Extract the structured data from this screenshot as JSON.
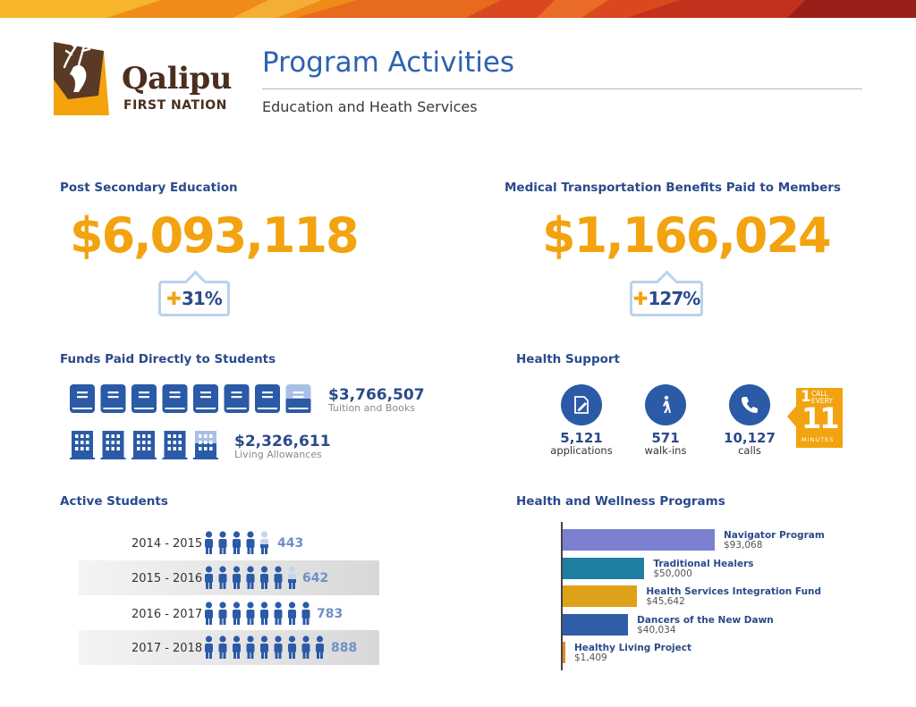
{
  "header": {
    "logo_name": "Qalipu",
    "logo_sub": "FIRST NATION",
    "title": "Program Activities",
    "subtitle": "Education and Heath Services"
  },
  "post_secondary": {
    "heading": "Post Secondary Education",
    "amount": "$6,093,118",
    "pct": "31%"
  },
  "medical": {
    "heading": "Medical Transportation Benefits Paid to Members",
    "amount": "$1,166,024",
    "pct": "127%"
  },
  "funds": {
    "heading": "Funds Paid Directly to Students",
    "tuition_amount": "$3,766,507",
    "tuition_label": "Tuition and Books",
    "tuition_icons": 7.5,
    "living_amount": "$2,326,611",
    "living_label": "Living Allowances",
    "living_icons": 4.5
  },
  "health_support": {
    "heading": "Health Support",
    "stats": [
      {
        "value": "5,121",
        "label": "applications",
        "icon": "document-pen-icon"
      },
      {
        "value": "571",
        "label": "walk-ins",
        "icon": "walking-person-icon"
      },
      {
        "value": "10,127",
        "label": "calls",
        "icon": "phone-icon"
      }
    ],
    "call_badge": {
      "top": "CALL",
      "every": "EVERY",
      "number": "11",
      "unit": "MINUTES",
      "lead": "1"
    }
  },
  "active_students": {
    "heading": "Active Students",
    "rows": [
      {
        "year": "2014 - 2015",
        "count": "443",
        "icons": 4.5
      },
      {
        "year": "2015 - 2016",
        "count": "642",
        "icons": 6.5
      },
      {
        "year": "2016 - 2017",
        "count": "783",
        "icons": 8
      },
      {
        "year": "2017 - 2018",
        "count": "888",
        "icons": 9
      }
    ]
  },
  "wellness": {
    "heading": "Health and Wellness Programs",
    "chart_data": {
      "type": "bar",
      "orientation": "horizontal",
      "categories": [
        "Navigator Program",
        "Traditional Healers",
        "Health Services Integration Fund",
        "Dancers of the New Dawn",
        "Healthy Living Project"
      ],
      "values": [
        93068,
        50000,
        45642,
        40034,
        1409
      ],
      "value_labels": [
        "$93,068",
        "$50,000",
        "$45,642",
        "$40,034",
        "$1,409"
      ],
      "colors": [
        "#7b7fd0",
        "#1f7fa0",
        "#e0a11a",
        "#2f5da8",
        "#e08a1e"
      ]
    }
  }
}
